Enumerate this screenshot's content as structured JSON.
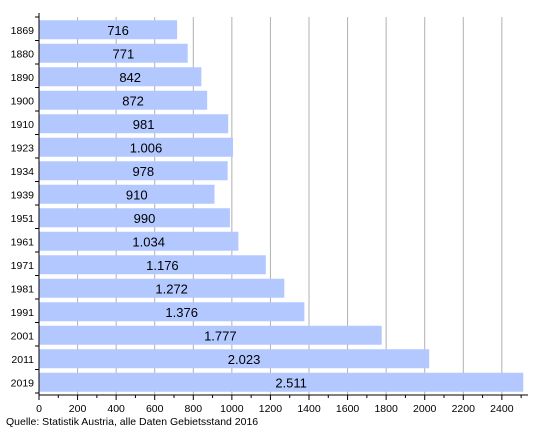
{
  "chart_data": {
    "type": "bar",
    "orientation": "horizontal",
    "categories": [
      "1869",
      "1880",
      "1890",
      "1900",
      "1910",
      "1923",
      "1934",
      "1939",
      "1951",
      "1961",
      "1971",
      "1981",
      "1991",
      "2001",
      "2011",
      "2019"
    ],
    "values": [
      716,
      771,
      842,
      872,
      981,
      1006,
      978,
      910,
      990,
      1034,
      1176,
      1272,
      1376,
      1777,
      2023,
      2511
    ],
    "value_labels": [
      "716",
      "771",
      "842",
      "872",
      "981",
      "1.006",
      "978",
      "910",
      "990",
      "1.034",
      "1.176",
      "1.272",
      "1.376",
      "1.777",
      "2.023",
      "2.511"
    ],
    "xticks": [
      0,
      200,
      400,
      600,
      800,
      1000,
      1200,
      1400,
      1600,
      1800,
      2000,
      2200,
      2400
    ],
    "xlim": [
      0,
      2520
    ],
    "grid": "vertical",
    "bar_color": "#b2c8ff",
    "title": "",
    "xlabel": "",
    "ylabel": ""
  },
  "source_note": "Quelle: Statistik Austria, alle Daten Gebietsstand 2016"
}
